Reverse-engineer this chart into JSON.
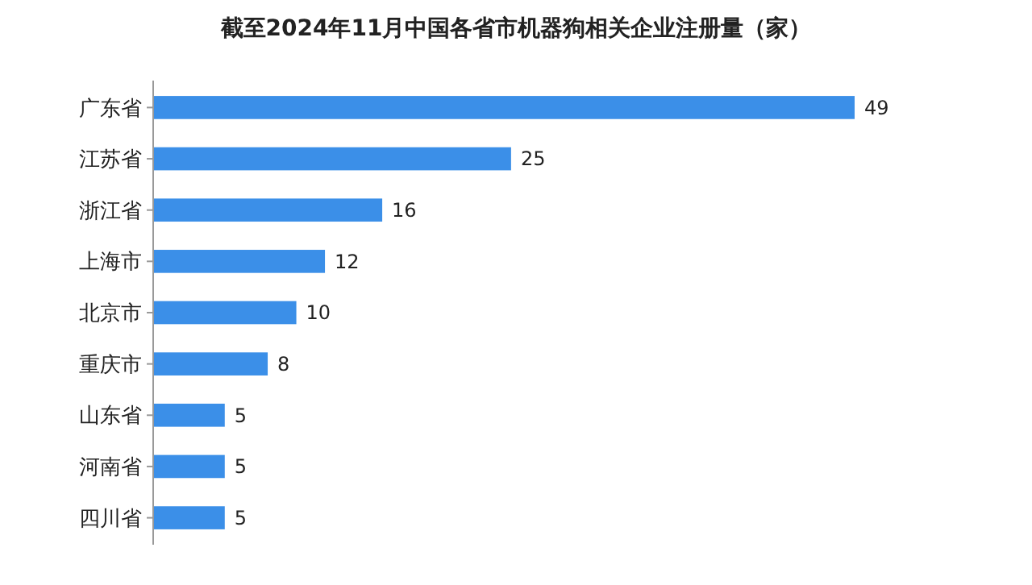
{
  "chart_data": {
    "type": "bar",
    "orientation": "horizontal",
    "title": "截至2024年11月中国各省市机器狗相关企业注册量（家）",
    "categories": [
      "广东省",
      "江苏省",
      "浙江省",
      "上海市",
      "北京市",
      "重庆市",
      "山东省",
      "河南省",
      "四川省"
    ],
    "values": [
      49,
      25,
      16,
      12,
      10,
      8,
      5,
      5,
      5
    ],
    "color": "#3b8fe8",
    "data_labels": true
  }
}
